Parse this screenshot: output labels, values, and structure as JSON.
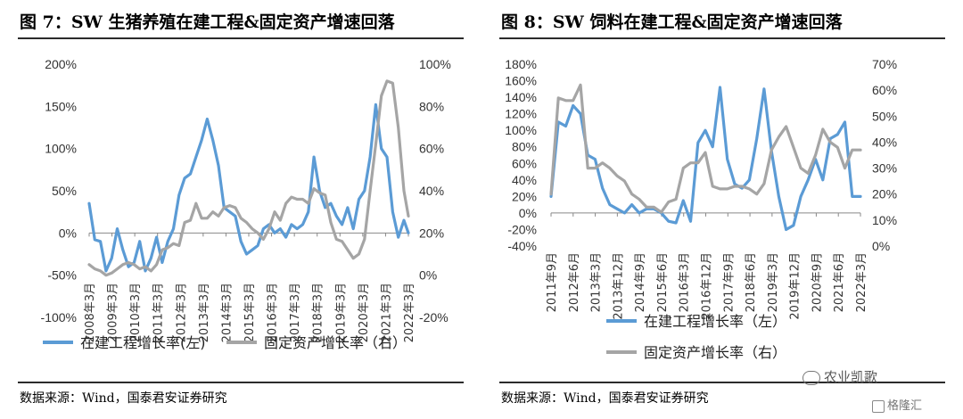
{
  "figures": [
    {
      "title": "图 7：SW 生猪养殖在建工程&固定资产增速回落",
      "source": "数据来源：Wind，国泰君安证券研究"
    },
    {
      "title": "图 8：SW 饲料在建工程&固定资产增速回落",
      "source": "数据来源：Wind，国泰君安证券研究"
    }
  ],
  "watermark": "农业凯歌",
  "logo_text": "格隆汇",
  "colors": {
    "left_series": "#5b9bd5",
    "right_series": "#a5a5a5"
  },
  "chart_data": [
    {
      "type": "line",
      "x_ticks": [
        "2008年3月",
        "2009年3月",
        "2010年3月",
        "2011年3月",
        "2012年3月",
        "2013年3月",
        "2014年3月",
        "2015年3月",
        "2016年3月",
        "2017年3月",
        "2018年3月",
        "2019年3月",
        "2020年3月",
        "2021年3月",
        "2022年3月"
      ],
      "x_range": [
        2008.0,
        2022.2
      ],
      "left_axis": {
        "ticks": [
          "200%",
          "150%",
          "100%",
          "50%",
          "0%",
          "-50%",
          "-100%"
        ],
        "range": [
          -100,
          200
        ]
      },
      "right_axis": {
        "ticks": [
          "100%",
          "80%",
          "60%",
          "40%",
          "20%",
          "0%",
          "-20%"
        ],
        "range": [
          -20,
          100
        ]
      },
      "series": [
        {
          "name": "在建工程增长率(左)",
          "axis": "left",
          "points": [
            [
              2008.0,
              35
            ],
            [
              2008.25,
              -8
            ],
            [
              2008.5,
              -10
            ],
            [
              2008.75,
              -45
            ],
            [
              2009.0,
              -30
            ],
            [
              2009.25,
              5
            ],
            [
              2009.5,
              -20
            ],
            [
              2009.75,
              -40
            ],
            [
              2010.0,
              -35
            ],
            [
              2010.25,
              -10
            ],
            [
              2010.5,
              -45
            ],
            [
              2010.75,
              -30
            ],
            [
              2011.0,
              -5
            ],
            [
              2011.25,
              -35
            ],
            [
              2011.5,
              -10
            ],
            [
              2011.75,
              5
            ],
            [
              2012.0,
              45
            ],
            [
              2012.25,
              65
            ],
            [
              2012.5,
              70
            ],
            [
              2012.75,
              90
            ],
            [
              2013.0,
              110
            ],
            [
              2013.25,
              135
            ],
            [
              2013.5,
              110
            ],
            [
              2013.75,
              80
            ],
            [
              2014.0,
              30
            ],
            [
              2014.25,
              25
            ],
            [
              2014.5,
              20
            ],
            [
              2014.75,
              -10
            ],
            [
              2015.0,
              -25
            ],
            [
              2015.25,
              -20
            ],
            [
              2015.5,
              -15
            ],
            [
              2015.75,
              5
            ],
            [
              2016.0,
              10
            ],
            [
              2016.25,
              0
            ],
            [
              2016.5,
              5
            ],
            [
              2016.75,
              -5
            ],
            [
              2017.0,
              10
            ],
            [
              2017.25,
              5
            ],
            [
              2017.5,
              10
            ],
            [
              2017.75,
              25
            ],
            [
              2018.0,
              90
            ],
            [
              2018.25,
              50
            ],
            [
              2018.5,
              30
            ],
            [
              2018.75,
              35
            ],
            [
              2019.0,
              20
            ],
            [
              2019.25,
              10
            ],
            [
              2019.5,
              30
            ],
            [
              2019.75,
              5
            ],
            [
              2020.0,
              40
            ],
            [
              2020.25,
              50
            ],
            [
              2020.5,
              90
            ],
            [
              2020.75,
              152
            ],
            [
              2021.0,
              100
            ],
            [
              2021.25,
              90
            ],
            [
              2021.5,
              25
            ],
            [
              2021.75,
              -5
            ],
            [
              2022.0,
              15
            ],
            [
              2022.2,
              0
            ]
          ]
        },
        {
          "name": "固定资产增长率（右）",
          "axis": "right",
          "points": [
            [
              2008.0,
              5
            ],
            [
              2008.25,
              3
            ],
            [
              2008.5,
              2
            ],
            [
              2008.75,
              0
            ],
            [
              2009.0,
              1
            ],
            [
              2009.25,
              3
            ],
            [
              2009.5,
              5
            ],
            [
              2009.75,
              6
            ],
            [
              2010.0,
              5
            ],
            [
              2010.25,
              3
            ],
            [
              2010.5,
              4
            ],
            [
              2010.75,
              2
            ],
            [
              2011.0,
              5
            ],
            [
              2011.25,
              12
            ],
            [
              2011.5,
              13
            ],
            [
              2011.75,
              15
            ],
            [
              2012.0,
              14
            ],
            [
              2012.25,
              25
            ],
            [
              2012.5,
              26
            ],
            [
              2012.75,
              34
            ],
            [
              2013.0,
              27
            ],
            [
              2013.25,
              27
            ],
            [
              2013.5,
              30
            ],
            [
              2013.75,
              28
            ],
            [
              2014.0,
              32
            ],
            [
              2014.25,
              33
            ],
            [
              2014.5,
              32
            ],
            [
              2014.75,
              27
            ],
            [
              2015.0,
              25
            ],
            [
              2015.25,
              22
            ],
            [
              2015.5,
              20
            ],
            [
              2015.75,
              17
            ],
            [
              2016.0,
              22
            ],
            [
              2016.25,
              30
            ],
            [
              2016.5,
              26
            ],
            [
              2016.75,
              34
            ],
            [
              2017.0,
              37
            ],
            [
              2017.25,
              36
            ],
            [
              2017.5,
              36
            ],
            [
              2017.75,
              34
            ],
            [
              2018.0,
              41
            ],
            [
              2018.25,
              39
            ],
            [
              2018.5,
              38
            ],
            [
              2018.75,
              25
            ],
            [
              2019.0,
              17
            ],
            [
              2019.25,
              16
            ],
            [
              2019.5,
              12
            ],
            [
              2019.75,
              8
            ],
            [
              2020.0,
              10
            ],
            [
              2020.25,
              17
            ],
            [
              2020.5,
              40
            ],
            [
              2020.75,
              62
            ],
            [
              2021.0,
              85
            ],
            [
              2021.25,
              92
            ],
            [
              2021.5,
              91
            ],
            [
              2021.75,
              70
            ],
            [
              2022.0,
              40
            ],
            [
              2022.2,
              28
            ]
          ]
        }
      ]
    },
    {
      "type": "line",
      "x_ticks": [
        "2011年9月",
        "2012年6月",
        "2013年3月",
        "2013年12月",
        "2014年9月",
        "2015年6月",
        "2016年3月",
        "2016年12月",
        "2017年9月",
        "2018年6月",
        "2019年3月",
        "2019年12月",
        "2020年9月",
        "2021年6月",
        "2022年3月"
      ],
      "x_range": [
        2011.67,
        2022.2
      ],
      "left_axis": {
        "ticks": [
          "180%",
          "160%",
          "140%",
          "120%",
          "100%",
          "80%",
          "60%",
          "40%",
          "20%",
          "0%",
          "-20%",
          "-40%"
        ],
        "range": [
          -40,
          180
        ]
      },
      "right_axis": {
        "ticks": [
          "70%",
          "60%",
          "50%",
          "40%",
          "30%",
          "20%",
          "10%",
          "0%"
        ],
        "range": [
          0,
          70
        ]
      },
      "series": [
        {
          "name": "在建工程增长率（左）",
          "axis": "left",
          "points": [
            [
              2011.67,
              20
            ],
            [
              2011.92,
              110
            ],
            [
              2012.17,
              105
            ],
            [
              2012.42,
              130
            ],
            [
              2012.67,
              120
            ],
            [
              2012.92,
              70
            ],
            [
              2013.17,
              65
            ],
            [
              2013.42,
              30
            ],
            [
              2013.67,
              10
            ],
            [
              2013.92,
              5
            ],
            [
              2014.17,
              0
            ],
            [
              2014.42,
              10
            ],
            [
              2014.67,
              0
            ],
            [
              2014.92,
              5
            ],
            [
              2015.17,
              5
            ],
            [
              2015.42,
              0
            ],
            [
              2015.67,
              -10
            ],
            [
              2015.92,
              -12
            ],
            [
              2016.17,
              15
            ],
            [
              2016.42,
              -10
            ],
            [
              2016.67,
              85
            ],
            [
              2016.92,
              100
            ],
            [
              2017.17,
              80
            ],
            [
              2017.42,
              152
            ],
            [
              2017.67,
              65
            ],
            [
              2017.92,
              35
            ],
            [
              2018.17,
              30
            ],
            [
              2018.42,
              40
            ],
            [
              2018.67,
              90
            ],
            [
              2018.92,
              150
            ],
            [
              2019.17,
              75
            ],
            [
              2019.42,
              20
            ],
            [
              2019.67,
              -20
            ],
            [
              2019.92,
              -15
            ],
            [
              2020.17,
              20
            ],
            [
              2020.42,
              40
            ],
            [
              2020.67,
              65
            ],
            [
              2020.92,
              40
            ],
            [
              2021.17,
              90
            ],
            [
              2021.42,
              95
            ],
            [
              2021.67,
              110
            ],
            [
              2021.92,
              20
            ],
            [
              2022.2,
              20
            ]
          ]
        },
        {
          "name": "固定资产增长率（右）",
          "axis": "right",
          "points": [
            [
              2011.67,
              20
            ],
            [
              2011.92,
              57
            ],
            [
              2012.17,
              56
            ],
            [
              2012.42,
              56
            ],
            [
              2012.67,
              62
            ],
            [
              2012.92,
              30
            ],
            [
              2013.17,
              30
            ],
            [
              2013.42,
              32
            ],
            [
              2013.67,
              30
            ],
            [
              2013.92,
              27
            ],
            [
              2014.17,
              25
            ],
            [
              2014.42,
              20
            ],
            [
              2014.67,
              18
            ],
            [
              2014.92,
              15
            ],
            [
              2015.17,
              15
            ],
            [
              2015.42,
              13
            ],
            [
              2015.67,
              17
            ],
            [
              2015.92,
              18
            ],
            [
              2016.17,
              30
            ],
            [
              2016.42,
              32
            ],
            [
              2016.67,
              32
            ],
            [
              2016.92,
              36
            ],
            [
              2017.17,
              23
            ],
            [
              2017.42,
              22
            ],
            [
              2017.67,
              22
            ],
            [
              2017.92,
              23
            ],
            [
              2018.17,
              23
            ],
            [
              2018.42,
              22
            ],
            [
              2018.67,
              20
            ],
            [
              2018.92,
              24
            ],
            [
              2019.17,
              37
            ],
            [
              2019.42,
              42
            ],
            [
              2019.67,
              46
            ],
            [
              2019.92,
              38
            ],
            [
              2020.17,
              30
            ],
            [
              2020.42,
              28
            ],
            [
              2020.67,
              35
            ],
            [
              2020.92,
              45
            ],
            [
              2021.17,
              40
            ],
            [
              2021.42,
              38
            ],
            [
              2021.67,
              30
            ],
            [
              2021.92,
              37
            ],
            [
              2022.2,
              37
            ]
          ]
        }
      ]
    }
  ]
}
